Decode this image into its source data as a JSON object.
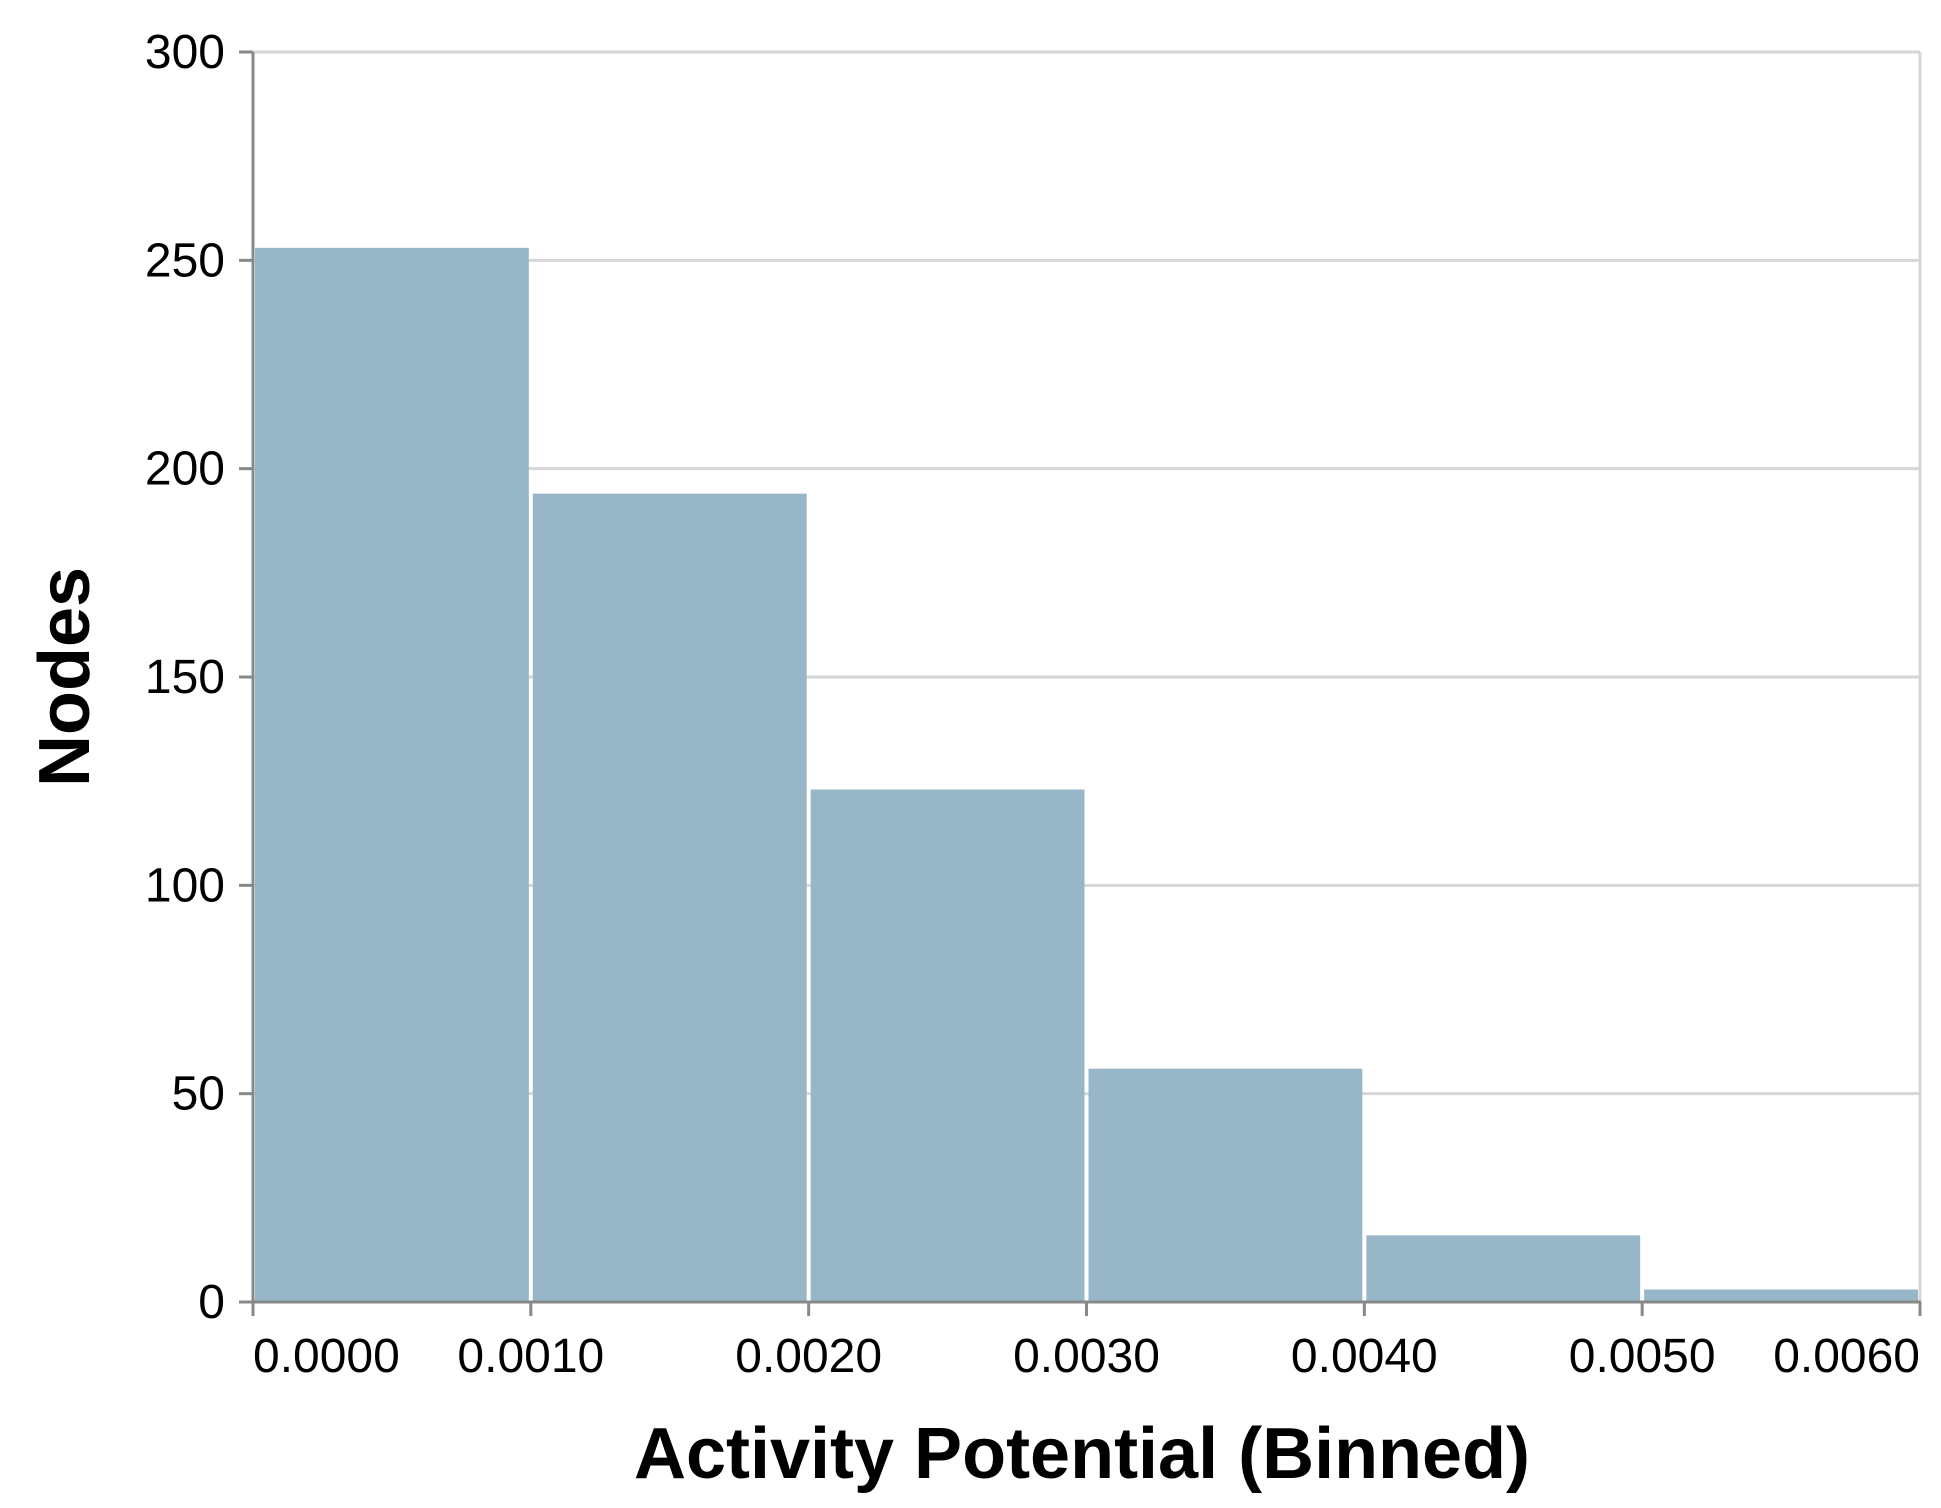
{
  "chart_data": {
    "type": "bar",
    "histogram": true,
    "bins": [
      {
        "start": 0.0,
        "end": 0.001,
        "value": 253
      },
      {
        "start": 0.001,
        "end": 0.002,
        "value": 194
      },
      {
        "start": 0.002,
        "end": 0.003,
        "value": 123
      },
      {
        "start": 0.003,
        "end": 0.004,
        "value": 56
      },
      {
        "start": 0.004,
        "end": 0.005,
        "value": 16
      },
      {
        "start": 0.005,
        "end": 0.006,
        "value": 3
      }
    ],
    "x_ticks": [
      "0.0000",
      "0.0010",
      "0.0020",
      "0.0030",
      "0.0040",
      "0.0050",
      "0.0060"
    ],
    "x_tick_values": [
      0.0,
      0.001,
      0.002,
      0.003,
      0.004,
      0.005,
      0.006
    ],
    "y_ticks": [
      "0",
      "50",
      "100",
      "150",
      "200",
      "250",
      "300"
    ],
    "y_tick_values": [
      0,
      50,
      100,
      150,
      200,
      250,
      300
    ],
    "xlabel": "Activity Potential (Binned)",
    "ylabel": "Nodes",
    "xlim": [
      0,
      0.006
    ],
    "ylim": [
      0,
      300
    ],
    "grid": "horizontal",
    "colors": {
      "bar": "#97b7c8",
      "grid": "#d6d6d6",
      "axis": "#888888"
    }
  }
}
